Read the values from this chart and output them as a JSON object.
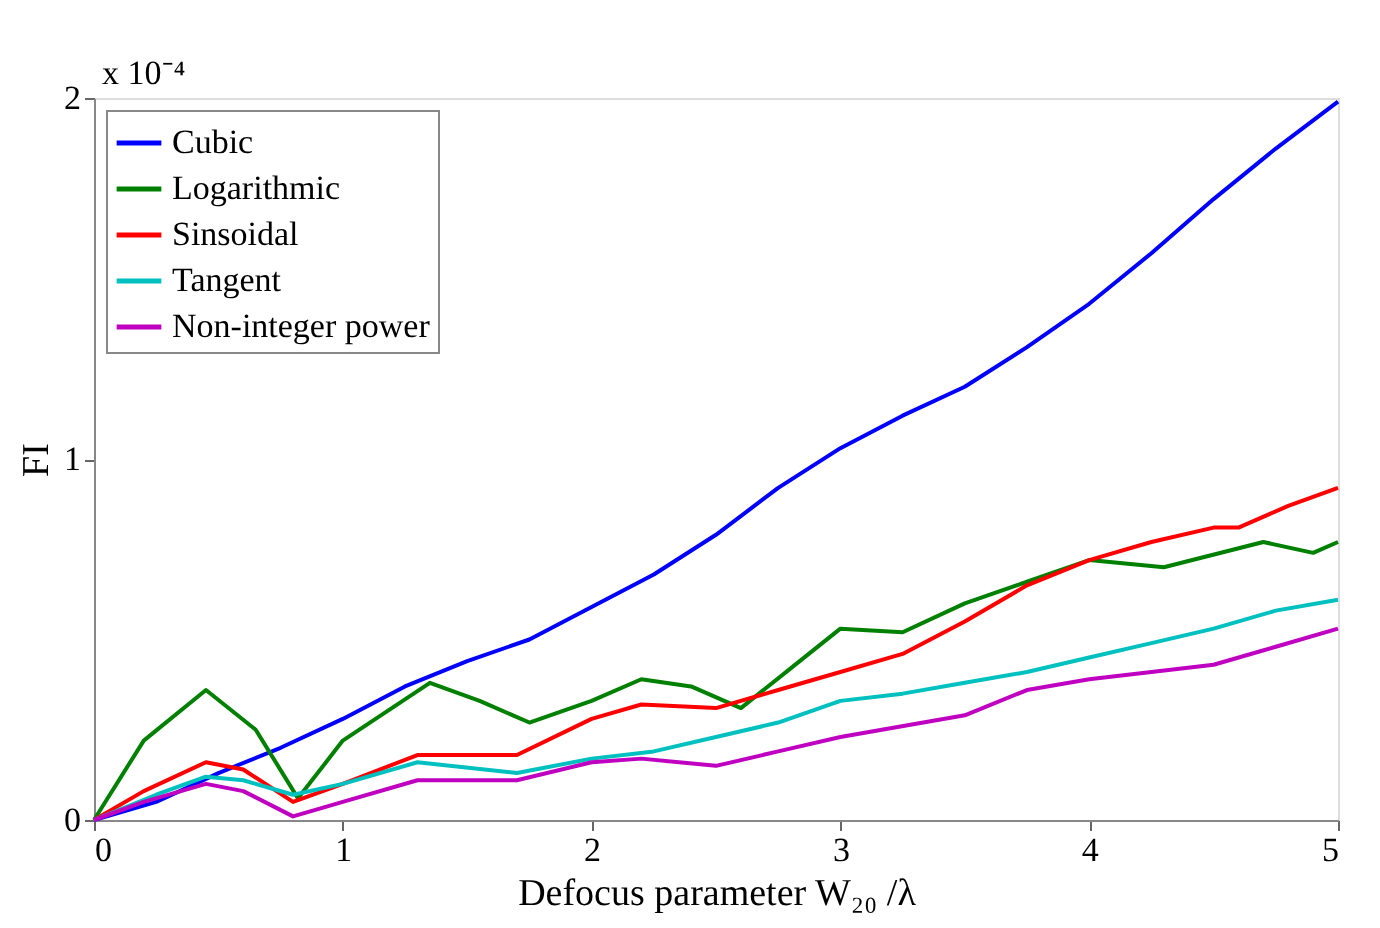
{
  "chart_data": {
    "type": "line",
    "xlabel": "Defocus parameter W₂₀ /λ",
    "ylabel": "FI",
    "annotations": [
      "x 10⁻⁴"
    ],
    "xlim": [
      0,
      5
    ],
    "ylim": [
      0,
      2
    ],
    "xticks": [
      0,
      1,
      2,
      3,
      4,
      5
    ],
    "yticks": [
      0,
      1,
      2
    ],
    "grid": false,
    "legend": "top left",
    "line_style": "solid",
    "marker": "none",
    "series": [
      {
        "name": "Cubic",
        "color": "#0000ff",
        "x": [
          0,
          0.25,
          0.5,
          0.75,
          1,
          1.25,
          1.5,
          1.75,
          2,
          2.25,
          2.5,
          2.75,
          3,
          3.25,
          3.5,
          3.75,
          4,
          4.25,
          4.5,
          4.75,
          5
        ],
        "values": [
          0,
          0.05,
          0.13,
          0.2,
          0.28,
          0.37,
          0.44,
          0.5,
          0.59,
          0.68,
          0.79,
          0.92,
          1.03,
          1.12,
          1.2,
          1.31,
          1.43,
          1.57,
          1.72,
          1.86,
          1.99
        ]
      },
      {
        "name": "Logarithmic",
        "color": "#008000",
        "x": [
          0,
          0.2,
          0.45,
          0.65,
          0.82,
          1.0,
          1.35,
          1.55,
          1.75,
          2.0,
          2.2,
          2.4,
          2.6,
          2.8,
          3.0,
          3.25,
          3.5,
          3.75,
          4.0,
          4.3,
          4.7,
          4.9,
          5
        ],
        "values": [
          0,
          0.22,
          0.36,
          0.25,
          0.06,
          0.22,
          0.38,
          0.33,
          0.27,
          0.33,
          0.39,
          0.37,
          0.31,
          0.42,
          0.53,
          0.52,
          0.6,
          0.66,
          0.72,
          0.7,
          0.77,
          0.74,
          0.77
        ]
      },
      {
        "name": "Sinsoidal",
        "color": "#ff0000",
        "x": [
          0,
          0.2,
          0.45,
          0.6,
          0.8,
          1.0,
          1.3,
          1.7,
          2.0,
          2.2,
          2.5,
          2.75,
          3.0,
          3.25,
          3.5,
          3.75,
          4.0,
          4.25,
          4.5,
          4.6,
          4.8,
          5
        ],
        "values": [
          0,
          0.08,
          0.16,
          0.14,
          0.05,
          0.1,
          0.18,
          0.18,
          0.28,
          0.32,
          0.31,
          0.36,
          0.41,
          0.46,
          0.55,
          0.65,
          0.72,
          0.77,
          0.81,
          0.81,
          0.87,
          0.92
        ]
      },
      {
        "name": "Tangent",
        "color": "#00c0c0",
        "x": [
          0,
          0.25,
          0.45,
          0.6,
          0.8,
          1.0,
          1.3,
          1.7,
          2.0,
          2.25,
          2.5,
          2.75,
          3.0,
          3.25,
          3.5,
          3.75,
          4.0,
          4.25,
          4.5,
          4.75,
          5
        ],
        "values": [
          0,
          0.07,
          0.12,
          0.11,
          0.07,
          0.1,
          0.16,
          0.13,
          0.17,
          0.19,
          0.23,
          0.27,
          0.33,
          0.35,
          0.38,
          0.41,
          0.45,
          0.49,
          0.53,
          0.58,
          0.61
        ]
      },
      {
        "name": "Non-integer power",
        "color": "#c000c0",
        "x": [
          0,
          0.2,
          0.45,
          0.6,
          0.8,
          1.0,
          1.3,
          1.7,
          2.0,
          2.2,
          2.5,
          2.75,
          3.0,
          3.5,
          3.75,
          4.0,
          4.5,
          4.75,
          5
        ],
        "values": [
          0,
          0.05,
          0.1,
          0.08,
          0.01,
          0.05,
          0.11,
          0.11,
          0.16,
          0.17,
          0.15,
          0.19,
          0.23,
          0.29,
          0.36,
          0.39,
          0.43,
          0.48,
          0.53
        ]
      }
    ]
  }
}
